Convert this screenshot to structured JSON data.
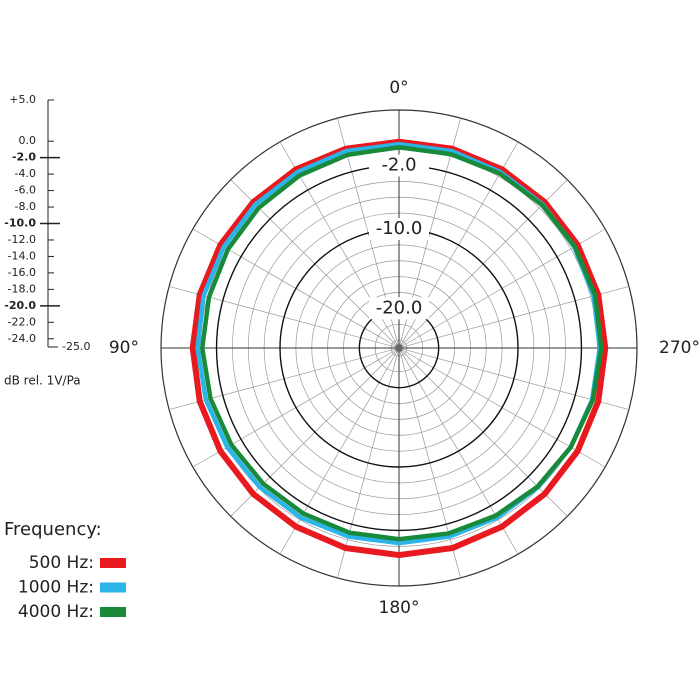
{
  "chart_data": {
    "type": "polar",
    "angle_direction": "counterclockwise",
    "angle_step": 15,
    "rlim": [
      -25,
      5
    ],
    "rticks": [
      {
        "value": -2,
        "label": "-2.0"
      },
      {
        "value": -10,
        "label": "-10.0"
      },
      {
        "value": -20,
        "label": "-20.0"
      }
    ],
    "thetaticks": [
      {
        "value": 0,
        "label": "0°"
      },
      {
        "value": 90,
        "label": "90°"
      },
      {
        "value": 180,
        "label": "180°"
      },
      {
        "value": 270,
        "label": "270°"
      }
    ],
    "scale_ticks": [
      {
        "value": 5,
        "label": "+5.0"
      },
      {
        "value": 0,
        "label": "0.0"
      },
      {
        "value": -2,
        "label": "-2.0"
      },
      {
        "value": -4,
        "label": "-4.0"
      },
      {
        "value": -6,
        "label": "-6.0"
      },
      {
        "value": -8,
        "label": "-8.0"
      },
      {
        "value": -10,
        "label": "-10.0"
      },
      {
        "value": -12,
        "label": "-12.0"
      },
      {
        "value": -14,
        "label": "-14.0"
      },
      {
        "value": -16,
        "label": "-16.0"
      },
      {
        "value": -18,
        "label": "-18.0"
      },
      {
        "value": -20,
        "label": "-20.0"
      },
      {
        "value": -22,
        "label": "-22.0"
      },
      {
        "value": -24,
        "label": "-24.0"
      },
      {
        "value": -25,
        "label": "-25.0"
      }
    ],
    "scale_label": "dB rel. 1V/Pa",
    "legend_title": "Frequency:",
    "x": [
      0,
      15,
      30,
      45,
      60,
      75,
      90,
      105,
      120,
      135,
      150,
      165,
      180,
      195,
      210,
      225,
      240,
      255,
      270,
      285,
      300,
      315,
      330,
      345
    ],
    "series": [
      {
        "name": "500 Hz:",
        "color": "#e8191f",
        "values": [
          1.0,
          1.0,
          1.0,
          1.0,
          1.0,
          1.0,
          1.0,
          1.0,
          1.0,
          1.0,
          1.0,
          1.1,
          1.1,
          1.1,
          1.0,
          1.0,
          1.0,
          1.0,
          1.0,
          1.0,
          1.0,
          1.0,
          1.0,
          1.0
        ]
      },
      {
        "name": "1000 Hz:",
        "color": "#2ab4e8",
        "values": [
          0.7,
          0.7,
          0.6,
          0.6,
          0.5,
          0.5,
          0.4,
          0.2,
          0.0,
          -0.2,
          -0.3,
          -0.4,
          -0.4,
          -0.4,
          -0.3,
          -0.2,
          0.0,
          0.2,
          0.3,
          0.4,
          0.5,
          0.6,
          0.6,
          0.7
        ]
      },
      {
        "name": "4000 Hz:",
        "color": "#198a3a",
        "values": [
          0.3,
          0.2,
          0.1,
          0.0,
          -0.1,
          -0.2,
          -0.2,
          -0.4,
          -0.6,
          -0.8,
          -0.9,
          -0.9,
          -0.9,
          -0.8,
          -0.6,
          -0.3,
          0.0,
          0.3,
          0.5,
          0.6,
          0.6,
          0.5,
          0.4,
          0.3
        ]
      }
    ]
  }
}
